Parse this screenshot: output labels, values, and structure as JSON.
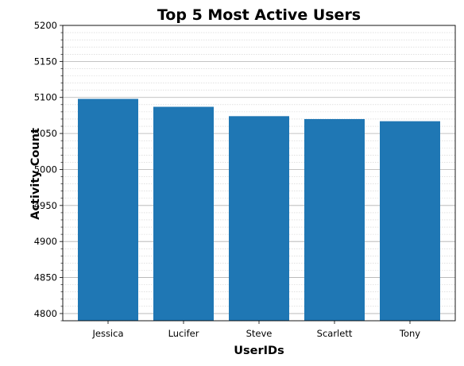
{
  "chart_data": {
    "type": "bar",
    "title": "Top 5 Most Active Users",
    "xlabel": "UserIDs",
    "ylabel": "Activity Count",
    "categories": [
      "Jessica",
      "Lucifer",
      "Steve",
      "Scarlett",
      "Tony"
    ],
    "values": [
      5098,
      5087,
      5074,
      5070,
      5067
    ],
    "ylim": [
      4790,
      5200
    ],
    "yticks": [
      "4800",
      "4850",
      "4900",
      "4950",
      "5000",
      "5050",
      "5100",
      "5150",
      "5200"
    ],
    "ytick_values": [
      4800,
      4850,
      4900,
      4950,
      5000,
      5050,
      5100,
      5150,
      5200
    ],
    "grid": true,
    "minor_grid": true,
    "bar_color": "#1f77b4"
  }
}
